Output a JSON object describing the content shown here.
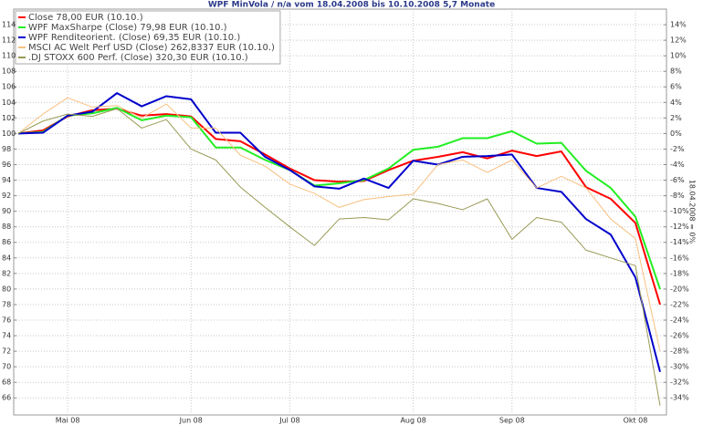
{
  "chart_data": {
    "type": "line",
    "title": "WPF MinVola / n/a vom 18.04.2008 bis 10.10.2008 5,7 Monate",
    "y2_label": "18.04.2008 = 0%",
    "categories": [
      null,
      null,
      "Mai 08",
      null,
      null,
      null,
      null,
      "Jun 08",
      null,
      null,
      null,
      "Jul 08",
      null,
      null,
      null,
      null,
      "Aug 08",
      null,
      null,
      null,
      "Sep 08",
      null,
      null,
      null,
      null,
      "Okt 08",
      null
    ],
    "series": [
      {
        "name": "Close 78,00 EUR (10.10.)",
        "color": "#ff0000",
        "width": 2,
        "values": [
          100,
          100.4,
          102.2,
          103.0,
          103.2,
          102.3,
          102.5,
          102.2,
          99.3,
          99.0,
          97.3,
          95.5,
          94.0,
          93.8,
          93.9,
          95.3,
          96.5,
          97.0,
          97.6,
          96.8,
          97.8,
          97.1,
          97.7,
          93.1,
          91.6,
          88.5,
          78
        ]
      },
      {
        "name": "WPF MaxSharpe (Close) 79,98 EUR (10.10.)",
        "color": "#22ee22",
        "width": 2,
        "values": [
          100,
          100.2,
          102.3,
          102.6,
          103.3,
          101.7,
          102.3,
          102.1,
          98.2,
          98.2,
          96.6,
          95.3,
          93.3,
          93.6,
          94.0,
          95.5,
          97.9,
          98.3,
          99.4,
          99.4,
          100.3,
          98.7,
          98.8,
          95.2,
          93.0,
          89.3,
          79.98
        ]
      },
      {
        "name": "WPF Renditeorient. (Close) 69,35 EUR (10.10.)",
        "color": "#0000cc",
        "width": 2,
        "values": [
          100,
          100.1,
          102.3,
          102.8,
          105.2,
          103.5,
          104.8,
          104.4,
          100.1,
          100.1,
          97.0,
          95.3,
          93.2,
          92.9,
          94.2,
          93.0,
          96.5,
          96.0,
          97.0,
          97.1,
          97.3,
          93.0,
          92.5,
          89.0,
          87.0,
          81.5,
          69.35
        ]
      },
      {
        "name": "MSCI AC Welt Perf USD (Close) 262,8337 EUR (10.10.)",
        "color": "#f8c080",
        "width": 1,
        "values": [
          100,
          102.5,
          104.6,
          103.4,
          103.6,
          102.0,
          103.8,
          100.7,
          100.7,
          97.2,
          95.8,
          93.5,
          92.3,
          90.5,
          91.5,
          91.9,
          92.2,
          96.0,
          96.6,
          95.0,
          96.6,
          93.0,
          94.5,
          93.0,
          89.0,
          86.5,
          72.0
        ]
      },
      {
        "name": ".DJ STOXX 600 Perf. (Close) 320,30 EUR (10.10.)",
        "color": "#999955",
        "width": 1,
        "values": [
          100,
          101.6,
          102.5,
          102.2,
          103.2,
          100.7,
          101.8,
          98.0,
          96.6,
          93.1,
          90.5,
          88.0,
          85.6,
          89.0,
          89.2,
          88.9,
          91.6,
          91.0,
          90.2,
          91.6,
          86.4,
          89.2,
          88.6,
          85.0,
          84.0,
          83.0,
          65.0
        ]
      }
    ],
    "ylim": [
      63.8,
      116
    ],
    "yticks": [
      66,
      68,
      70,
      72,
      74,
      76,
      78,
      80,
      82,
      84,
      86,
      88,
      90,
      92,
      94,
      96,
      98,
      100,
      102,
      104,
      106,
      108,
      110,
      112,
      114
    ],
    "y2lim": [
      -36.2,
      16
    ],
    "y2ticks": [
      {
        "value": -34,
        "label": "-34%"
      },
      {
        "value": -32,
        "label": "-32%"
      },
      {
        "value": -30,
        "label": "-30%"
      },
      {
        "value": -28,
        "label": "-28%"
      },
      {
        "value": -26,
        "label": "-26%"
      },
      {
        "value": -24,
        "label": "-24%"
      },
      {
        "value": -22,
        "label": "-22%"
      },
      {
        "value": -20,
        "label": "-20%"
      },
      {
        "value": -18,
        "label": "-18%"
      },
      {
        "value": -16,
        "label": "-16%"
      },
      {
        "value": -14,
        "label": "-14%"
      },
      {
        "value": -12,
        "label": "-12%"
      },
      {
        "value": -10,
        "label": "-10%"
      },
      {
        "value": -8,
        "label": "-8%"
      },
      {
        "value": -6,
        "label": "-6%"
      },
      {
        "value": -4,
        "label": "-4%"
      },
      {
        "value": -2,
        "label": "-2%"
      },
      {
        "value": 0,
        "label": "0%"
      },
      {
        "value": 2,
        "label": "2%"
      },
      {
        "value": 4,
        "label": "4%"
      },
      {
        "value": 6,
        "label": "6%"
      },
      {
        "value": 8,
        "label": "8%"
      },
      {
        "value": 10,
        "label": "10%"
      },
      {
        "value": 12,
        "label": "12%"
      },
      {
        "value": 14,
        "label": "14%"
      }
    ],
    "grid": true,
    "legend": "top-left"
  }
}
